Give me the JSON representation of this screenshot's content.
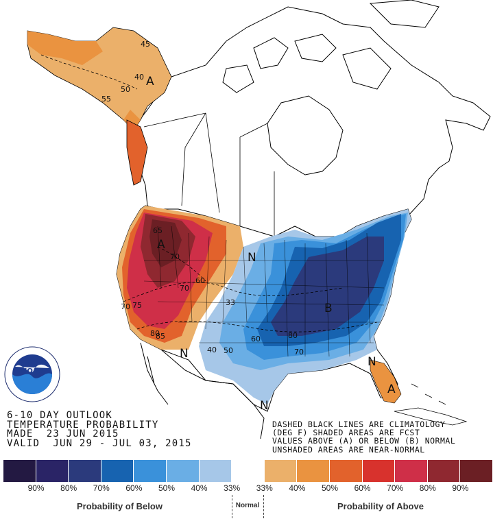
{
  "outlook": {
    "title": "6-10 DAY OUTLOOK",
    "subtitle": "TEMPERATURE PROBABILITY",
    "made": "MADE  23 JUN 2015",
    "valid": "VALID  JUN 29 - JUL 03, 2015"
  },
  "notes": {
    "line1": "DASHED BLACK LINES ARE CLIMATOLOGY",
    "line2": "(DEG F) SHADED AREAS ARE FCST",
    "line3": "VALUES ABOVE (A) OR BELOW (B) NORMAL",
    "line4": "UNSHADED AREAS ARE NEAR-NORMAL"
  },
  "logo": {
    "text": "NOAA",
    "ring_text": "NATIONAL OCEANIC AND ATMOSPHERIC ADMINISTRATION · U.S. DEPARTMENT OF COMMERCE"
  },
  "legend": {
    "colors": [
      "#231942",
      "#2a2466",
      "#2b3a7c",
      "#1763b0",
      "#3a91da",
      "#6aaee5",
      "#a6c7e8",
      "#ffffff",
      "#ebb06a",
      "#ea9340",
      "#e2622c",
      "#d8322d",
      "#cf2f48",
      "#8f2830",
      "#6b1f24"
    ],
    "ticks": [
      "90%",
      "80%",
      "70%",
      "60%",
      "50%",
      "40%",
      "33%",
      "33%",
      "40%",
      "50%",
      "60%",
      "70%",
      "80%",
      "90%"
    ],
    "below_label": "Probability of Below",
    "normal_label": "Normal",
    "above_label": "Probability of Above"
  },
  "map_labels": {
    "alaska_above": "A",
    "alaska_40": "40",
    "alaska_45": "45",
    "alaska_50": "50",
    "alaska_55": "55",
    "nw_above": "A",
    "nw_65": "65",
    "nw_70": "70",
    "nw_60": "60",
    "nw_70b": "70",
    "ca_70": "70",
    "ca_75": "75",
    "sw_80": "80",
    "sw_85": "85",
    "normal_1": "N",
    "normal_2": "N",
    "normal_3": "N",
    "normal_4": "N",
    "plains_33": "33",
    "tx_40": "40",
    "tx_50": "50",
    "mid_60": "60",
    "east_below": "B",
    "se_80": "80",
    "se_70": "70",
    "fl_above": "A"
  }
}
